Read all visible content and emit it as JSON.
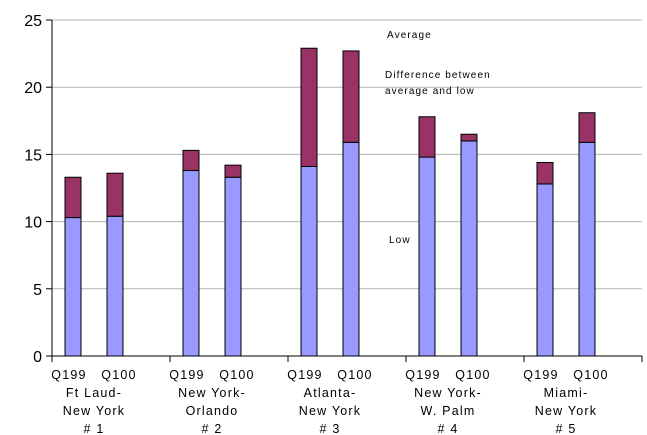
{
  "chart_data": {
    "type": "bar",
    "stacked": true,
    "title": "",
    "xlabel": "",
    "ylabel": "",
    "ylim": [
      0,
      25
    ],
    "yticks": [
      "0",
      "5",
      "10",
      "15",
      "20",
      "25"
    ],
    "grid": true,
    "groups": [
      {
        "sublabel": [
          "Q199",
          "Q100"
        ],
        "lines": [
          "Ft Laud-",
          "New York",
          "# 1"
        ]
      },
      {
        "sublabel": [
          "Q199",
          "Q100"
        ],
        "lines": [
          "New York-",
          "Orlando",
          "# 2"
        ]
      },
      {
        "sublabel": [
          "Q199",
          "Q100"
        ],
        "lines": [
          "Atlanta-",
          "New York",
          "# 3"
        ]
      },
      {
        "sublabel": [
          "Q199",
          "Q100"
        ],
        "lines": [
          "New York-",
          "W. Palm",
          "# 4"
        ]
      },
      {
        "sublabel": [
          "Q199",
          "Q100"
        ],
        "lines": [
          "Miami-",
          "New York",
          "# 5"
        ]
      }
    ],
    "series": [
      {
        "name": "Low",
        "color": "#9999ff",
        "values": [
          [
            10.3,
            10.4
          ],
          [
            13.8,
            13.3
          ],
          [
            14.1,
            15.9
          ],
          [
            14.8,
            16.0
          ],
          [
            12.8,
            15.9
          ]
        ]
      },
      {
        "name": "Difference between average and low",
        "color": "#993366",
        "values": [
          [
            3.0,
            3.2
          ],
          [
            1.5,
            0.9
          ],
          [
            8.8,
            6.8
          ],
          [
            3.0,
            0.5
          ],
          [
            1.6,
            2.2
          ]
        ]
      }
    ],
    "annotations": {
      "average": "Average",
      "difference_line1": "Difference between",
      "difference_line2": "average and low",
      "low": "Low"
    }
  }
}
